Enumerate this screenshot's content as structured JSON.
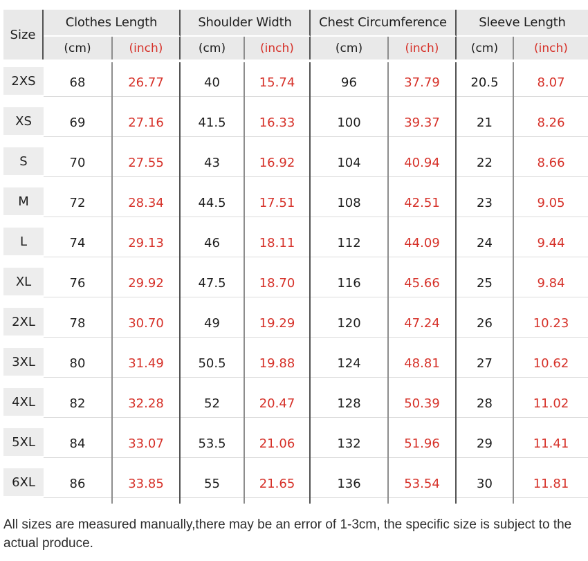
{
  "colors": {
    "red": "#d63129",
    "text": "#1d1d1d",
    "header_bg": "#e9e9e9",
    "size_box_bg": "#ededed",
    "line_dark": "#525252",
    "line_mid": "#8d8d8d",
    "row_divider": "#dcdcdc"
  },
  "chart_data": {
    "type": "table",
    "corner_label": "Size",
    "group_headers": [
      "Clothes Length",
      "Shoulder Width",
      "Chest Circumference",
      "Sleeve Length"
    ],
    "unit_cm": "(cm)",
    "unit_inch": "(inch)",
    "columns": [
      "Size",
      "Clothes Length (cm)",
      "Clothes Length (inch)",
      "Shoulder Width (cm)",
      "Shoulder Width (inch)",
      "Chest Circumference (cm)",
      "Chest Circumference (inch)",
      "Sleeve Length (cm)",
      "Sleeve Length (inch)"
    ],
    "rows": [
      {
        "size": "2XS",
        "values": [
          "68",
          "26.77",
          "40",
          "15.74",
          "96",
          "37.79",
          "20.5",
          "8.07"
        ]
      },
      {
        "size": "XS",
        "values": [
          "69",
          "27.16",
          "41.5",
          "16.33",
          "100",
          "39.37",
          "21",
          "8.26"
        ]
      },
      {
        "size": "S",
        "values": [
          "70",
          "27.55",
          "43",
          "16.92",
          "104",
          "40.94",
          "22",
          "8.66"
        ]
      },
      {
        "size": "M",
        "values": [
          "72",
          "28.34",
          "44.5",
          "17.51",
          "108",
          "42.51",
          "23",
          "9.05"
        ]
      },
      {
        "size": "L",
        "values": [
          "74",
          "29.13",
          "46",
          "18.11",
          "112",
          "44.09",
          "24",
          "9.44"
        ]
      },
      {
        "size": "XL",
        "values": [
          "76",
          "29.92",
          "47.5",
          "18.70",
          "116",
          "45.66",
          "25",
          "9.84"
        ]
      },
      {
        "size": "2XL",
        "values": [
          "78",
          "30.70",
          "49",
          "19.29",
          "120",
          "47.24",
          "26",
          "10.23"
        ]
      },
      {
        "size": "3XL",
        "values": [
          "80",
          "31.49",
          "50.5",
          "19.88",
          "124",
          "48.81",
          "27",
          "10.62"
        ]
      },
      {
        "size": "4XL",
        "values": [
          "82",
          "32.28",
          "52",
          "20.47",
          "128",
          "50.39",
          "28",
          "11.02"
        ]
      },
      {
        "size": "5XL",
        "values": [
          "84",
          "33.07",
          "53.5",
          "21.06",
          "132",
          "51.96",
          "29",
          "11.41"
        ]
      },
      {
        "size": "6XL",
        "values": [
          "86",
          "33.85",
          "55",
          "21.65",
          "136",
          "53.54",
          "30",
          "11.81"
        ]
      }
    ]
  },
  "footer": {
    "note": "All sizes are measured manually,there may be an error of 1-3cm, the specific size is subject to the actual produce."
  }
}
